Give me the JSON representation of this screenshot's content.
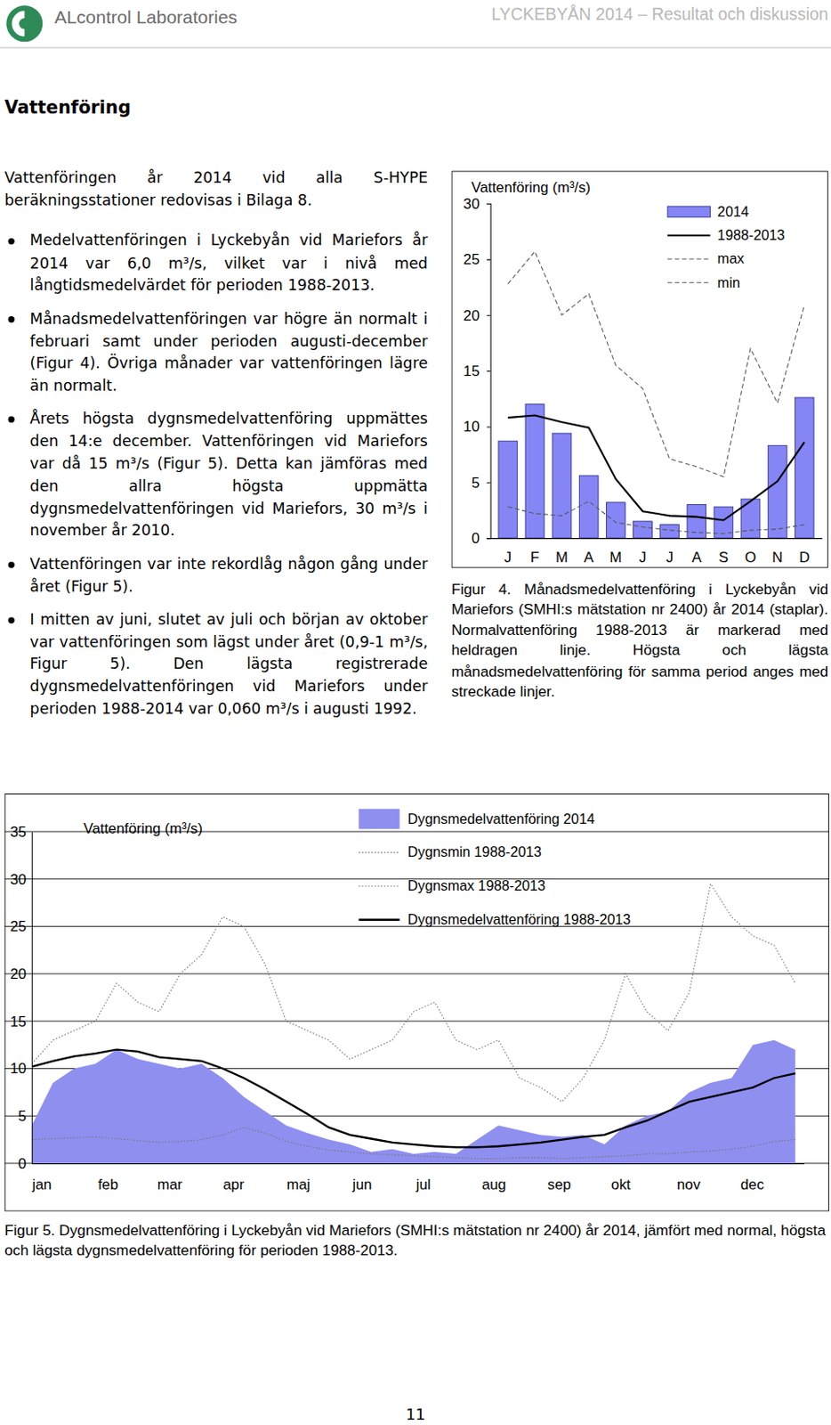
{
  "header": {
    "left": "ALcontrol Laboratories",
    "right": "LYCKEBYÅN 2014 – Resultat och diskussion"
  },
  "section_title": "Vattenföring",
  "intro": "Vattenföringen år 2014 vid alla S-HYPE beräkningsstationer redovisas i Bilaga 8.",
  "bullets": [
    "Medelvattenföringen i Lyckebyån vid Mariefors år 2014 var 6,0 m³/s, vilket var i nivå med långtidsmedelvärdet för perioden 1988-2013.",
    "Månadsmedelvattenföringen var högre än normalt i februari samt under perioden augusti-december (Figur 4). Övriga månader var vattenföringen lägre än normalt.",
    "Årets högsta dygnsmedelvattenföring uppmättes den 14:e december. Vattenföringen vid Mariefors var då 15 m³/s (Figur 5). Detta kan jämföras med den allra högsta uppmätta dygnsmedelvattenföringen vid Mariefors, 30 m³/s i november år 2010.",
    "Vattenföringen var inte rekordlåg någon gång under året (Figur 5).",
    "I mitten av juni, slutet av juli och början av oktober var vattenföringen som lägst under året (0,9-1 m³/s, Figur 5). Den lägsta registrerade dygnsmedelvattenföringen vid Mariefors under perioden 1988-2014 var 0,060 m³/s i augusti 1992."
  ],
  "chart_data": [
    {
      "type": "bar",
      "y_label": "Vattenföring (m³/s)",
      "categories": [
        "J",
        "F",
        "M",
        "A",
        "M",
        "J",
        "J",
        "A",
        "S",
        "O",
        "N",
        "D"
      ],
      "ylim": [
        0,
        30
      ],
      "yticks": [
        0,
        5,
        10,
        15,
        20,
        25,
        30
      ],
      "grid": false,
      "legend": "top-right",
      "series": [
        {
          "name": "2014",
          "type": "bar",
          "color": "#8585f5",
          "values": [
            8.7,
            12.0,
            9.4,
            5.6,
            3.2,
            1.5,
            1.2,
            3.0,
            2.8,
            3.5,
            8.3,
            12.6
          ]
        },
        {
          "name": "1988-2013",
          "type": "line",
          "line_style": "solid",
          "color": "#000000",
          "values": [
            10.8,
            11.0,
            10.4,
            9.9,
            5.3,
            2.4,
            2.0,
            1.9,
            1.6,
            3.3,
            5.1,
            8.6
          ]
        },
        {
          "name": "max",
          "type": "line",
          "line_style": "dashed",
          "color": "#555555",
          "values": [
            22.8,
            25.7,
            20.0,
            21.9,
            15.5,
            13.4,
            7.1,
            6.4,
            5.5,
            17.0,
            12.1,
            20.9
          ]
        },
        {
          "name": "min",
          "type": "line",
          "line_style": "dashed",
          "color": "#555555",
          "values": [
            2.8,
            2.2,
            2.0,
            3.3,
            1.4,
            1.0,
            0.7,
            0.5,
            0.4,
            0.7,
            0.8,
            1.2
          ]
        }
      ]
    },
    {
      "type": "line",
      "y_label": "Vattenföring (m³/s)",
      "x": [
        1,
        11,
        21,
        31,
        41,
        51,
        61,
        71,
        81,
        91,
        101,
        111,
        121,
        131,
        141,
        151,
        161,
        171,
        181,
        191,
        201,
        211,
        221,
        231,
        241,
        251,
        261,
        271,
        281,
        291,
        301,
        311,
        321,
        331,
        341,
        351,
        361
      ],
      "xlim": [
        1,
        365
      ],
      "xticks": [
        {
          "value": 1,
          "label": "jan"
        },
        {
          "value": 32,
          "label": "feb"
        },
        {
          "value": 60,
          "label": "mar"
        },
        {
          "value": 91,
          "label": "apr"
        },
        {
          "value": 121,
          "label": "maj"
        },
        {
          "value": 152,
          "label": "jun"
        },
        {
          "value": 182,
          "label": "jul"
        },
        {
          "value": 213,
          "label": "aug"
        },
        {
          "value": 244,
          "label": "sep"
        },
        {
          "value": 274,
          "label": "okt"
        },
        {
          "value": 305,
          "label": "nov"
        },
        {
          "value": 335,
          "label": "dec"
        }
      ],
      "ylim": [
        0,
        35
      ],
      "yticks": [
        0,
        5,
        10,
        15,
        20,
        25,
        30,
        35
      ],
      "grid": true,
      "legend": "top",
      "series": [
        {
          "name": "Dygnsmedelvattenföring 2014",
          "type": "area",
          "color": "#8f8ff0",
          "values": [
            4.0,
            8.5,
            10.0,
            10.5,
            12.0,
            11.0,
            10.5,
            10.0,
            10.5,
            9.0,
            7.0,
            5.5,
            4.0,
            3.2,
            2.5,
            2.0,
            1.2,
            1.5,
            1.0,
            1.2,
            1.0,
            2.5,
            4.0,
            3.5,
            3.0,
            2.8,
            3.0,
            2.0,
            4.0,
            5.0,
            5.5,
            7.5,
            8.5,
            9.0,
            12.5,
            13.0,
            12.0
          ]
        },
        {
          "name": "Dygnsmin 1988-2013",
          "type": "line",
          "line_style": "dotted",
          "color": "#777777",
          "values": [
            2.5,
            2.6,
            2.7,
            2.8,
            2.6,
            2.4,
            2.2,
            2.3,
            2.5,
            3.0,
            3.8,
            3.2,
            2.3,
            1.8,
            1.4,
            1.2,
            1.0,
            0.9,
            0.8,
            0.7,
            0.6,
            0.5,
            0.5,
            0.6,
            0.6,
            0.5,
            0.6,
            0.7,
            0.8,
            1.0,
            1.0,
            1.2,
            1.3,
            1.5,
            1.8,
            2.3,
            2.5
          ]
        },
        {
          "name": "Dygnsmax 1988-2013",
          "type": "line",
          "line_style": "dotted",
          "color": "#777777",
          "values": [
            10.5,
            13.0,
            14.0,
            15.0,
            19.0,
            17.0,
            16.0,
            20.0,
            22.0,
            26.0,
            25.0,
            21.0,
            15.0,
            14.0,
            13.0,
            11.0,
            12.0,
            13.0,
            16.0,
            17.0,
            13.0,
            12.0,
            13.0,
            9.0,
            8.0,
            6.5,
            9.0,
            13.0,
            20.0,
            16.0,
            14.0,
            18.0,
            29.5,
            26.0,
            24.0,
            23.0,
            19.0
          ]
        },
        {
          "name": "Dygnsmedelvattenföring 1988-2013",
          "type": "line",
          "line_style": "solid",
          "color": "#000000",
          "values": [
            10.2,
            10.8,
            11.3,
            11.6,
            12.0,
            11.8,
            11.2,
            11.0,
            10.8,
            10.0,
            9.0,
            7.8,
            6.5,
            5.2,
            3.8,
            3.0,
            2.6,
            2.2,
            2.0,
            1.8,
            1.7,
            1.7,
            1.8,
            2.0,
            2.2,
            2.5,
            2.8,
            3.0,
            3.8,
            4.5,
            5.5,
            6.5,
            7.0,
            7.5,
            8.0,
            9.0,
            9.5
          ]
        }
      ]
    }
  ],
  "captions": [
    "Figur 4. Månadsmedelvattenföring i Lyckebyån vid Mariefors (SMHI:s mätstation nr 2400) år 2014 (staplar). Normalvattenföring 1988-2013 är markerad med heldragen linje. Högsta och lägsta månadsmedelvattenföring för samma period anges med streckade linjer.",
    "Figur 5. Dygnsmedelvattenföring i Lyckebyån vid Mariefors (SMHI:s mätstation nr 2400) år 2014, jämfört med normal, högsta och lägsta dygnsmedelvattenföring för perioden 1988-2013."
  ],
  "page_number": "11"
}
